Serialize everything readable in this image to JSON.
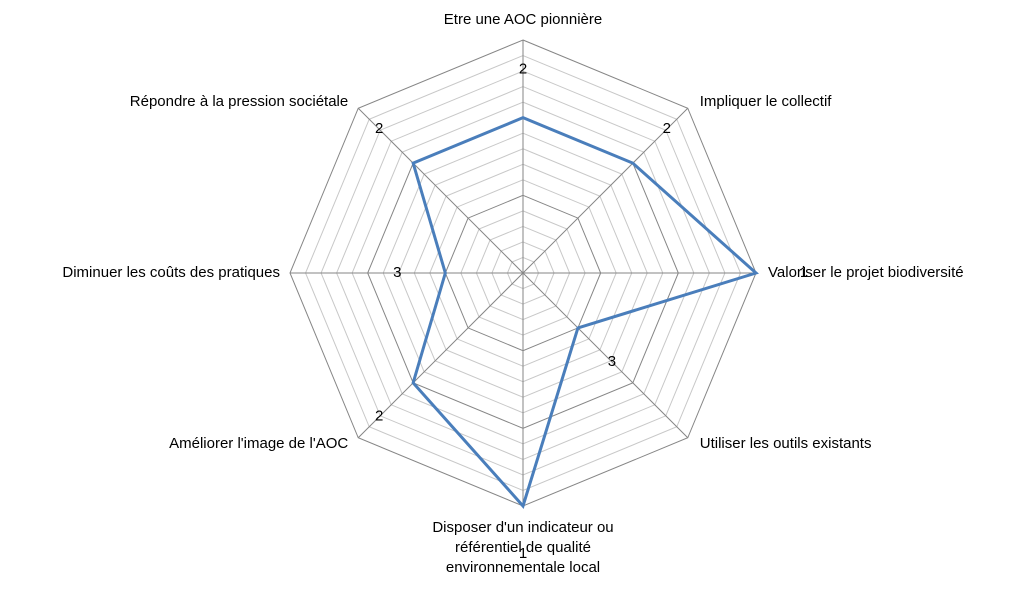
{
  "chart_data": {
    "type": "radar",
    "categories": [
      "Etre une AOC pionnière",
      "Impliquer le collectif",
      "Valoriser le projet biodiversité",
      "Utiliser les outils existants",
      "Disposer d'un indicateur ou référentiel de qualité environnementale local",
      "Améliorer l'image de l'AOC",
      "Diminuer les coûts des pratiques",
      "Répondre à la pression sociétale"
    ],
    "series": [
      {
        "color": "#4a7ebb",
        "values": [
          2,
          2,
          1,
          3,
          1,
          2,
          3,
          2
        ]
      }
    ],
    "ylim": [
      4,
      1
    ],
    "yticks": [
      4,
      3,
      2,
      1
    ],
    "grid": true
  }
}
